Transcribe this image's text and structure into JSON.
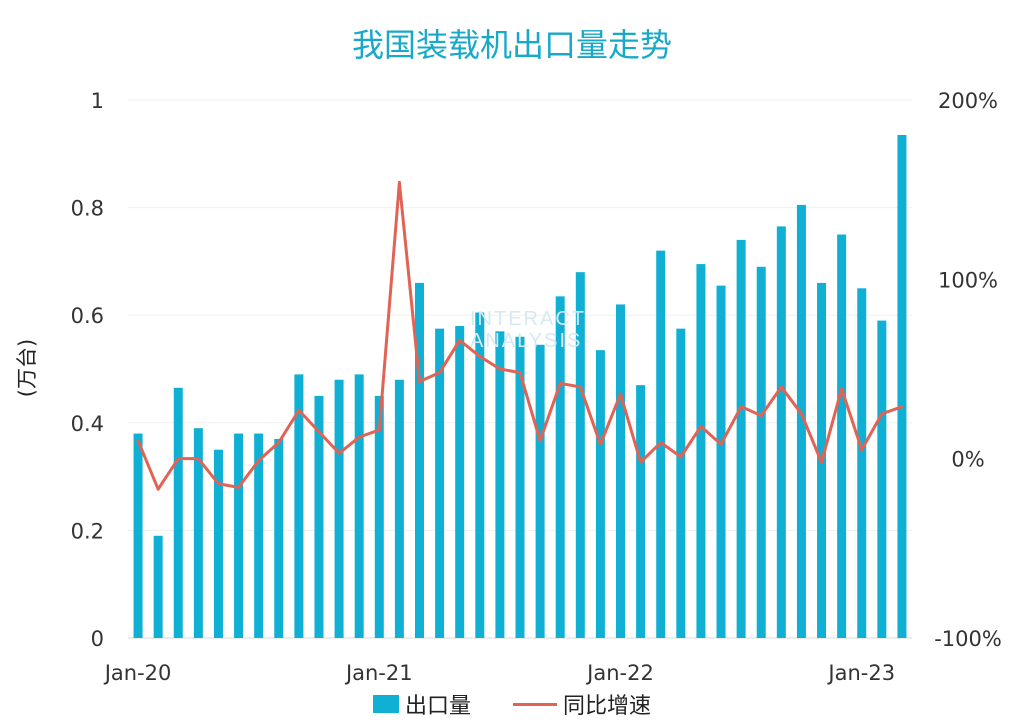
{
  "title": "我国装载机出口量走势",
  "watermark": [
    "INTERACT",
    "ANALYSIS"
  ],
  "chart_data": {
    "type": "bar",
    "title": "我国装载机出口量走势",
    "ylabel": "(万台)",
    "ylim": [
      0,
      1
    ],
    "y2lim": [
      -100,
      200
    ],
    "yticks": [
      "0",
      "0.2",
      "0.4",
      "0.6",
      "0.8",
      "1"
    ],
    "y2ticks": [
      "-100%",
      "0%",
      "100%",
      "200%"
    ],
    "xticks": [
      {
        "label": "Jan-20",
        "index": 0
      },
      {
        "label": "Jan-21",
        "index": 12
      },
      {
        "label": "Jan-22",
        "index": 24
      },
      {
        "label": "Jan-23",
        "index": 36
      }
    ],
    "grid": true,
    "legend_position": "bottom",
    "x": [
      "2020-01",
      "2020-02",
      "2020-03",
      "2020-04",
      "2020-05",
      "2020-06",
      "2020-07",
      "2020-08",
      "2020-09",
      "2020-10",
      "2020-11",
      "2020-12",
      "2021-01",
      "2021-02",
      "2021-03",
      "2021-04",
      "2021-05",
      "2021-06",
      "2021-07",
      "2021-08",
      "2021-09",
      "2021-10",
      "2021-11",
      "2021-12",
      "2022-01",
      "2022-02",
      "2022-03",
      "2022-04",
      "2022-05",
      "2022-06",
      "2022-07",
      "2022-08",
      "2022-09",
      "2022-10",
      "2022-11",
      "2022-12",
      "2023-01",
      "2023-02",
      "2023-03"
    ],
    "series": [
      {
        "name": "出口量",
        "type": "bar",
        "axis": "left",
        "color": "#0fb0d3",
        "values": [
          0.38,
          0.19,
          0.465,
          0.39,
          0.35,
          0.38,
          0.38,
          0.37,
          0.49,
          0.45,
          0.48,
          0.49,
          0.45,
          0.48,
          0.66,
          0.575,
          0.58,
          0.605,
          0.57,
          0.56,
          0.545,
          0.635,
          0.68,
          0.535,
          0.62,
          0.47,
          0.72,
          0.575,
          0.695,
          0.655,
          0.74,
          0.69,
          0.765,
          0.805,
          0.66,
          0.75,
          0.65,
          0.59,
          0.935
        ]
      },
      {
        "name": "同比增速",
        "type": "line",
        "axis": "right",
        "color": "#e06355",
        "values": [
          10,
          -17,
          0,
          0,
          -14,
          -16,
          -1,
          9,
          27,
          15,
          3,
          12,
          16,
          154,
          43,
          48,
          66,
          57,
          50,
          48,
          10,
          42,
          40,
          8,
          36,
          -2,
          9,
          1,
          18,
          8,
          29,
          24,
          40,
          25,
          -2,
          39,
          5,
          25,
          29
        ]
      }
    ]
  },
  "legend": {
    "bar_label": "出口量",
    "line_label": "同比增速"
  }
}
